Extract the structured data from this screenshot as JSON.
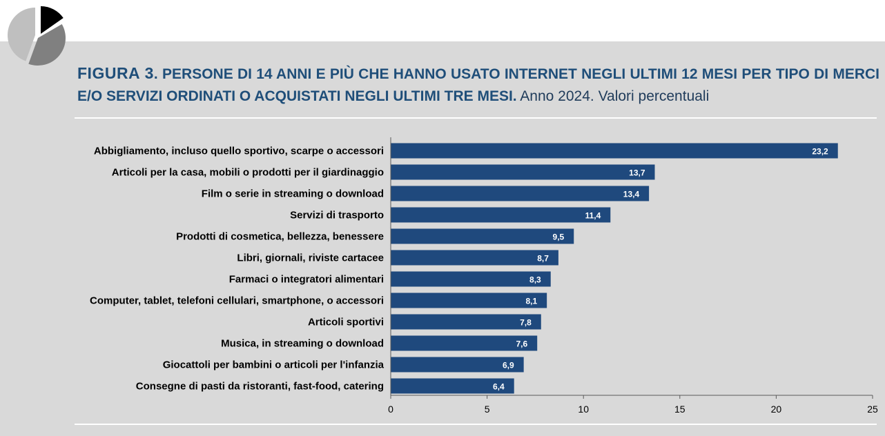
{
  "title": {
    "figure_label": "FIGURA 3",
    "heading": ". PERSONE DI 14 ANNI E PIÙ CHE HANNO USATO INTERNET NEGLI ULTIMI 12 MESI PER TIPO DI MERCI E/O SERVIZI ORDINATI O ACQUISTATI NEGLI ULTIMI TRE MESI.",
    "subtitle": " Anno 2024. Valori percentuali"
  },
  "colors": {
    "bar": "#1f497d",
    "panel": "#d9d9d9",
    "title": "#1f4e79",
    "logo_light": "#bfbfbf",
    "logo_dark": "#808080",
    "logo_black": "#000000"
  },
  "logo": {
    "icon": "pie-chart-icon"
  },
  "chart_data": {
    "type": "bar",
    "orientation": "horizontal",
    "categories": [
      "Abbigliamento, incluso quello sportivo, scarpe o accessori",
      "Articoli per la casa, mobili o prodotti per il giardinaggio",
      "Film o serie in streaming o download",
      "Servizi di trasporto",
      "Prodotti di cosmetica, bellezza, benessere",
      "Libri, giornali, riviste cartacee",
      "Farmaci o integratori alimentari",
      "Computer, tablet, telefoni cellulari, smartphone, o accessori",
      "Articoli sportivi",
      "Musica, in streaming o download",
      "Giocattoli per bambini o articoli per l'infanzia",
      "Consegne di pasti da ristoranti, fast-food, catering"
    ],
    "values": [
      23.2,
      13.7,
      13.4,
      11.4,
      9.5,
      8.7,
      8.3,
      8.1,
      7.8,
      7.6,
      6.9,
      6.4
    ],
    "value_labels": [
      "23,2",
      "13,7",
      "13,4",
      "11,4",
      "9,5",
      "8,7",
      "8,3",
      "8,1",
      "7,8",
      "7,6",
      "6,9",
      "6,4"
    ],
    "xlim": [
      0,
      25
    ],
    "xticks": [
      0,
      5,
      10,
      15,
      20,
      25
    ],
    "xtick_labels": [
      "0",
      "5",
      "10",
      "15",
      "20",
      "25"
    ],
    "grid": false,
    "legend": "none"
  }
}
